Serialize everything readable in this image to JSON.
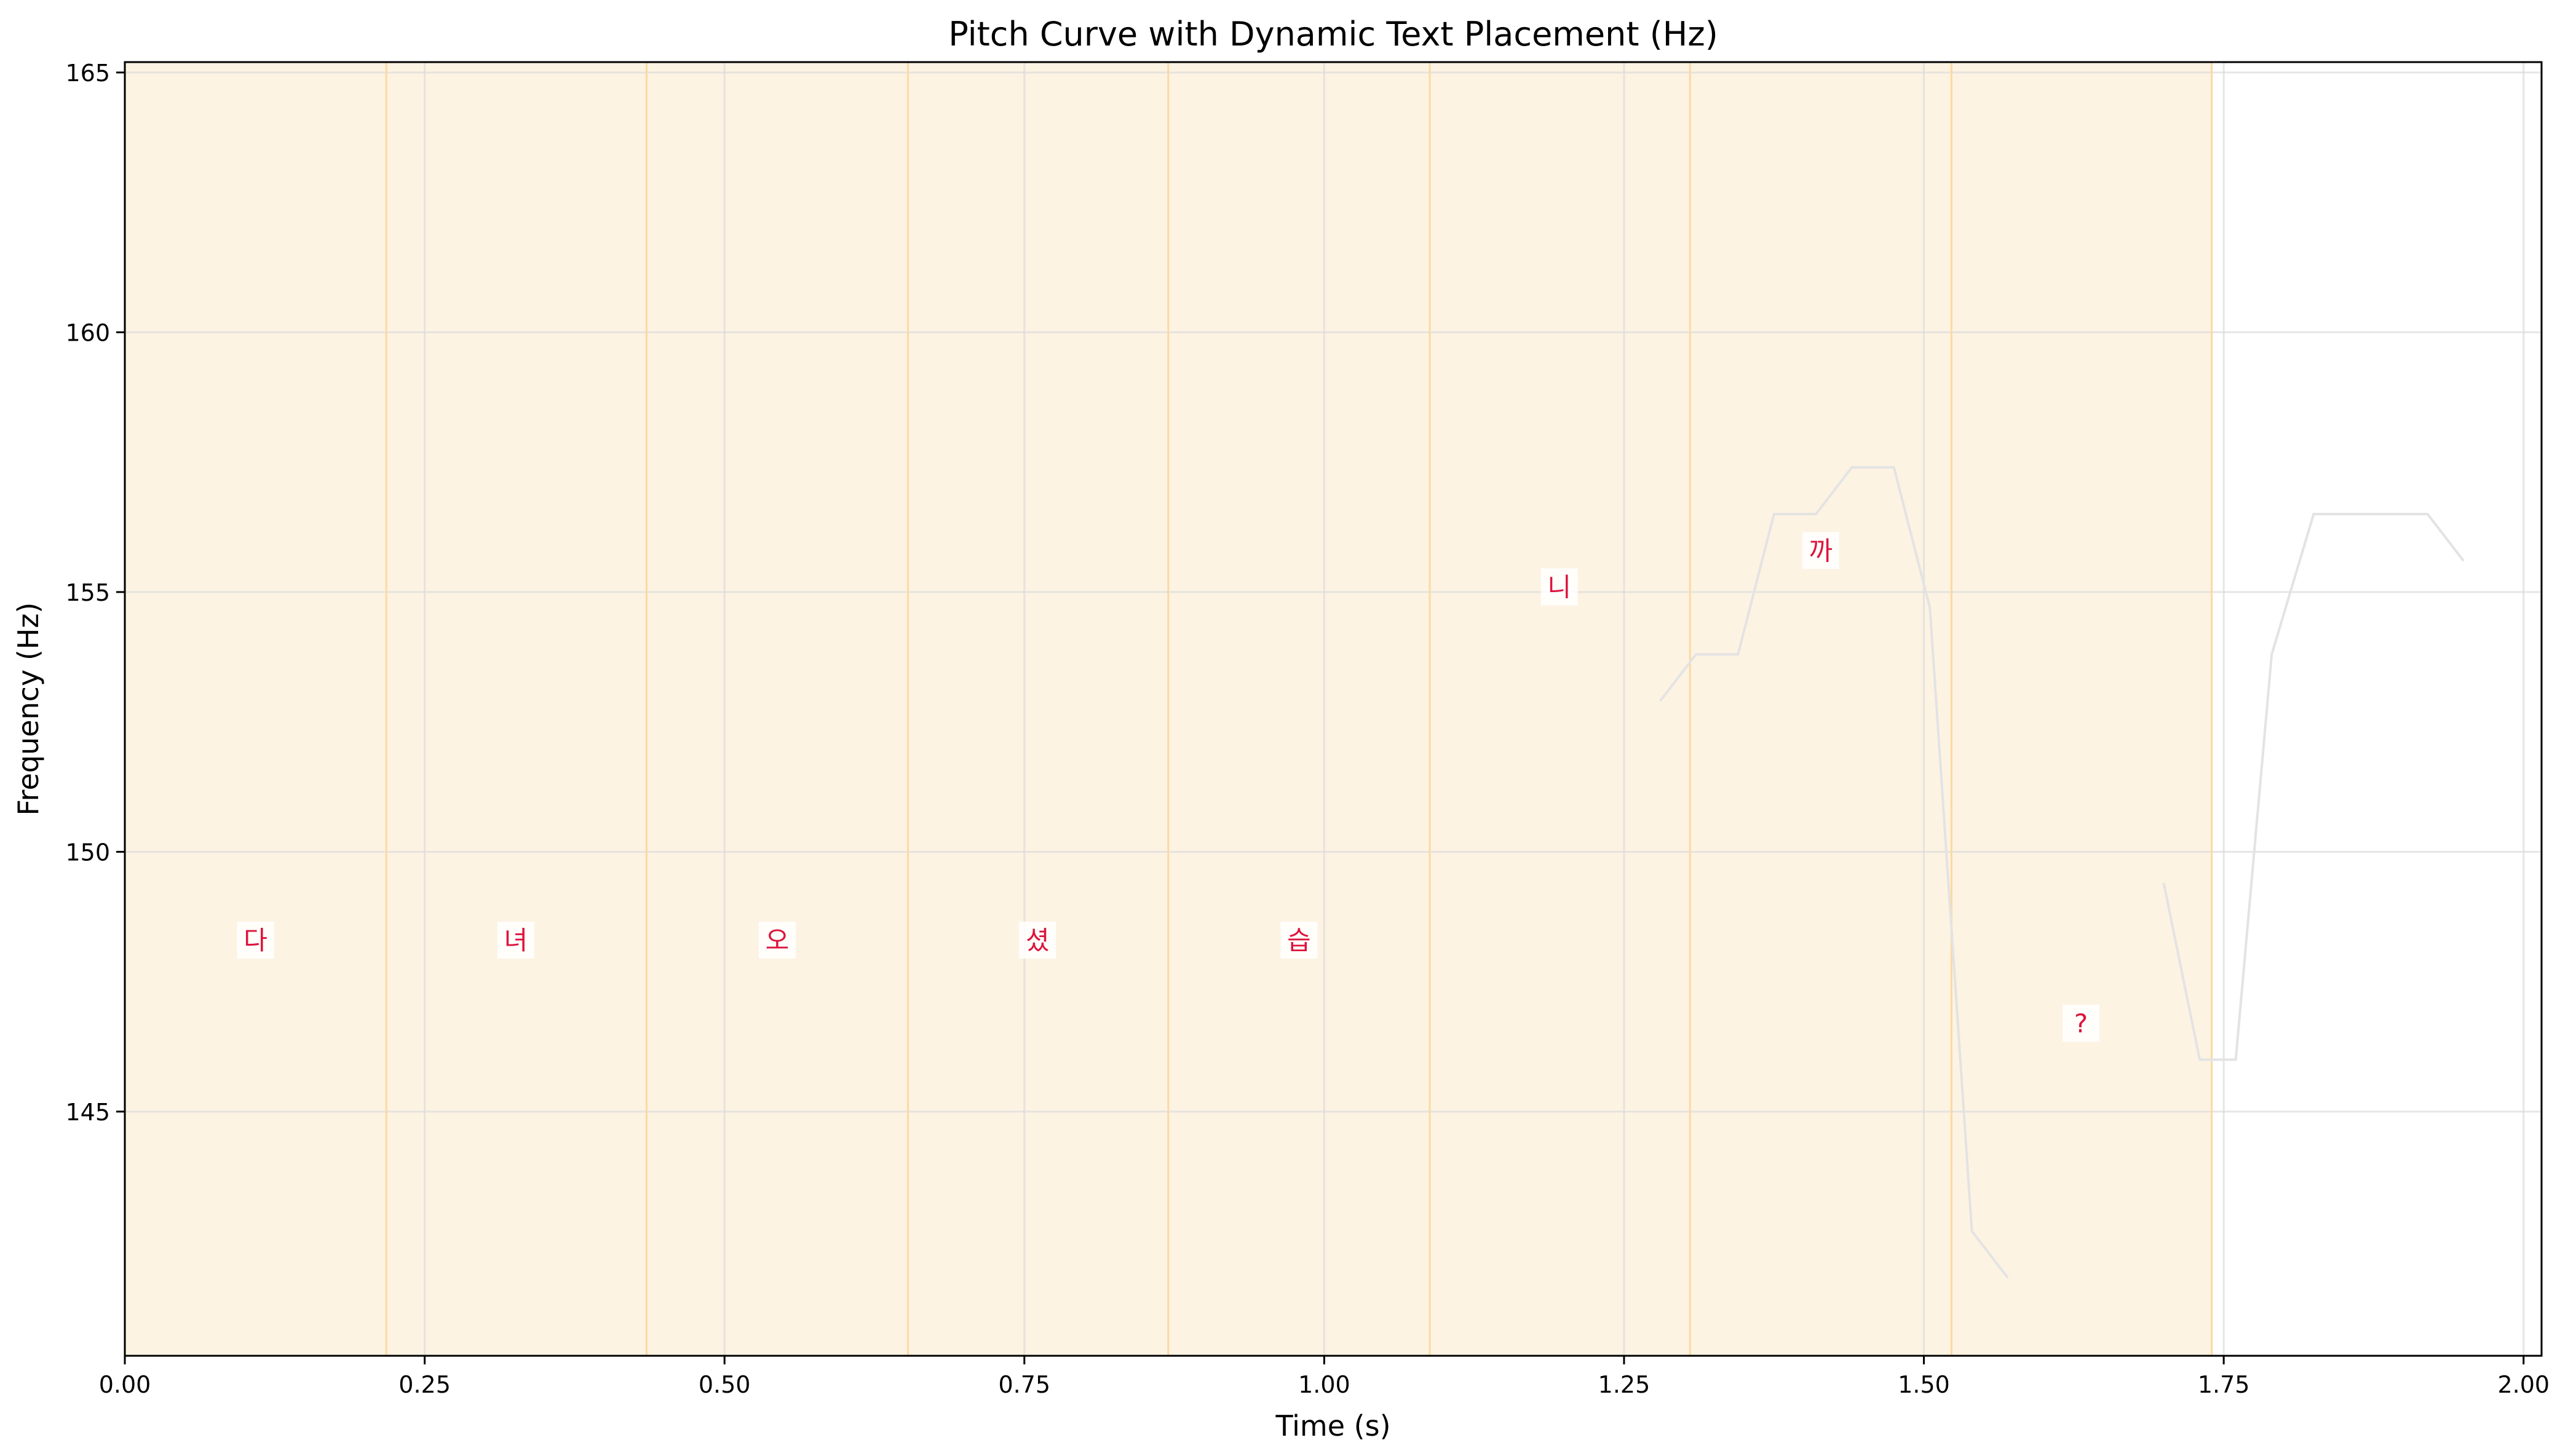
{
  "chart_data": {
    "type": "line",
    "title": "Pitch Curve with Dynamic Text Placement (Hz)",
    "xlabel": "Time (s)",
    "ylabel": "Frequency (Hz)",
    "xlim": [
      0.0,
      2.015
    ],
    "ylim": [
      140.3,
      165.2
    ],
    "x_ticks": [
      0.0,
      0.25,
      0.5,
      0.75,
      1.0,
      1.25,
      1.5,
      1.75,
      2.0
    ],
    "x_tick_labels": [
      "0.00",
      "0.25",
      "0.50",
      "0.75",
      "1.00",
      "1.25",
      "1.50",
      "1.75",
      "2.00"
    ],
    "y_ticks": [
      145,
      150,
      155,
      160,
      165
    ],
    "y_tick_labels": [
      "145",
      "150",
      "155",
      "160",
      "165"
    ],
    "grid": true,
    "shaded_region": [
      0.0,
      1.74
    ],
    "syllable_boundaries": [
      0.0,
      0.218,
      0.435,
      0.653,
      0.87,
      1.088,
      1.305,
      1.523,
      1.74
    ],
    "pitch_series": [
      {
        "x": [
          1.28,
          1.31,
          1.345,
          1.375,
          1.41,
          1.44,
          1.475,
          1.505,
          1.54,
          1.57
        ],
        "y": [
          152.9,
          153.8,
          153.8,
          156.5,
          156.5,
          157.4,
          157.4,
          154.7,
          142.7,
          141.8
        ]
      },
      {
        "x": [
          1.7,
          1.73,
          1.76,
          1.79,
          1.825,
          1.92,
          1.95
        ],
        "y": [
          149.4,
          146.0,
          146.0,
          153.8,
          156.5,
          156.5,
          155.6
        ]
      }
    ],
    "syllables": [
      {
        "text": "다",
        "x": 0.109,
        "y": 148.3
      },
      {
        "text": "녀",
        "x": 0.326,
        "y": 148.3
      },
      {
        "text": "오",
        "x": 0.544,
        "y": 148.3
      },
      {
        "text": "셨",
        "x": 0.761,
        "y": 148.3
      },
      {
        "text": "습",
        "x": 0.979,
        "y": 148.3
      },
      {
        "text": "니",
        "x": 1.196,
        "y": 155.1
      },
      {
        "text": "까",
        "x": 1.414,
        "y": 155.8
      },
      {
        "text": "?",
        "x": 1.631,
        "y": 146.7
      }
    ],
    "colors": {
      "shade": "#fdf3e3",
      "boundary": "#fcd9a0",
      "grid": "#dcdcdc",
      "pitch_line": "#e3e3e3",
      "syllable_text": "#dc143c"
    }
  }
}
